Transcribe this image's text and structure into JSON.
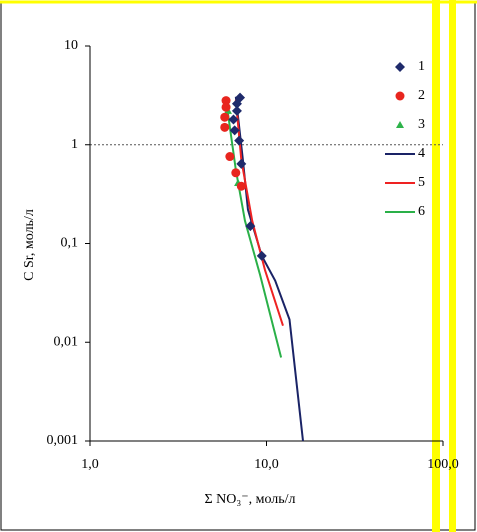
{
  "chart_data": {
    "type": "scatter",
    "xlabel": "Σ NO₃⁻, моль/л",
    "ylabel": "C Sr, моль/л",
    "xlog": true,
    "ylog": true,
    "xlim": [
      1,
      100
    ],
    "ylim": [
      0.001,
      10
    ],
    "xticks": [
      {
        "value": 1,
        "label": "1,0"
      },
      {
        "value": 10,
        "label": "10,0"
      },
      {
        "value": 100,
        "label": "100,0"
      }
    ],
    "yticks": [
      {
        "value": 0.001,
        "label": "0,001"
      },
      {
        "value": 0.01,
        "label": "0,01"
      },
      {
        "value": 0.1,
        "label": "0,1"
      },
      1,
      10
    ],
    "hline": 1,
    "legend": "upper right",
    "series": [
      {
        "name": "1",
        "marker": "diamond",
        "color": "#1f2a6b",
        "x": [
          7.08,
          6.8,
          6.8,
          6.5,
          6.6,
          7.0,
          7.2,
          8.1,
          9.4
        ],
        "values": [
          3.0,
          2.6,
          2.2,
          1.8,
          1.4,
          1.1,
          0.64,
          0.15,
          0.075
        ]
      },
      {
        "name": "2",
        "marker": "circle",
        "color": "#e8251e",
        "x": [
          5.9,
          5.9,
          5.8,
          5.8,
          6.2,
          6.7,
          7.2
        ],
        "values": [
          2.8,
          2.4,
          1.9,
          1.5,
          0.76,
          0.52,
          0.38
        ]
      },
      {
        "name": "3",
        "marker": "triangle",
        "color": "#2db34a",
        "x": [
          5.95,
          6.05,
          6.9
        ],
        "values": [
          2.6,
          2.2,
          0.41
        ]
      },
      {
        "name": "4",
        "marker": "line",
        "color": "#1a2366",
        "x": [
          6.7,
          7.35,
          7.85,
          9.4,
          11.2,
          13.5,
          16.1
        ],
        "values": [
          3.06,
          0.7,
          0.22,
          0.075,
          0.042,
          0.017,
          0.001
        ]
      },
      {
        "name": "5",
        "marker": "line",
        "color": "#ee2222",
        "x": [
          6.7,
          7.2,
          8.3,
          9.8,
          12.4
        ],
        "values": [
          2.85,
          0.7,
          0.17,
          0.054,
          0.0147
        ]
      },
      {
        "name": "6",
        "marker": "line",
        "color": "#2ab048",
        "x": [
          5.9,
          6.7,
          7.55,
          9.2,
          12.1
        ],
        "values": [
          2.85,
          0.56,
          0.17,
          0.048,
          0.007
        ]
      }
    ]
  }
}
